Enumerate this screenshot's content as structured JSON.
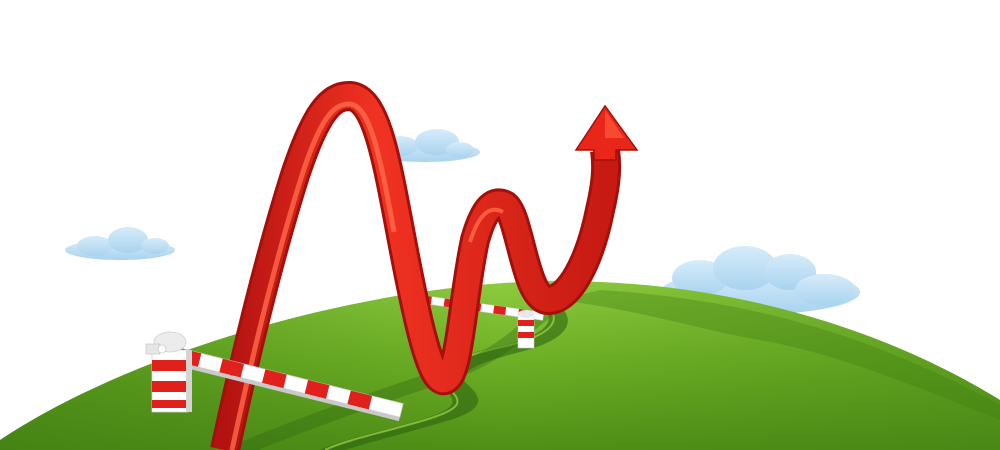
{
  "scene": {
    "background": "#ffffff",
    "sky_clouds": [
      "cloud-left",
      "cloud-center",
      "cloud-right"
    ],
    "hill_colors": {
      "light": "#8cc63f",
      "mid": "#6aa822",
      "dark": "#3f7d12",
      "shadow": "#2f6410"
    },
    "arrow_colors": {
      "light": "#ff5a3c",
      "main": "#e8261a",
      "dark": "#a50f0a"
    },
    "barrier_colors": {
      "red": "#e0201a",
      "white": "#ffffff",
      "gray": "#d4d4d4"
    },
    "cloud_color": "#bfe0f5"
  }
}
